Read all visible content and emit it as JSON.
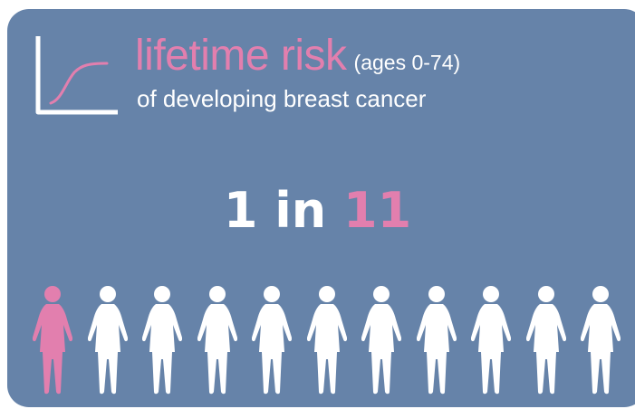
{
  "header": {
    "title": "lifetime risk",
    "ages": "(ages 0-74)",
    "subtitle": "of developing breast cancer"
  },
  "stat": {
    "numerator": "1",
    "connector": "in",
    "denominator": "11"
  },
  "pictogram": {
    "total": 11,
    "highlighted": 1
  },
  "colors": {
    "background": "#6683a9",
    "accent": "#e27fae",
    "text": "#ffffff"
  },
  "icons": {
    "chart": "cumulative-curve-icon",
    "person": "woman-icon"
  }
}
